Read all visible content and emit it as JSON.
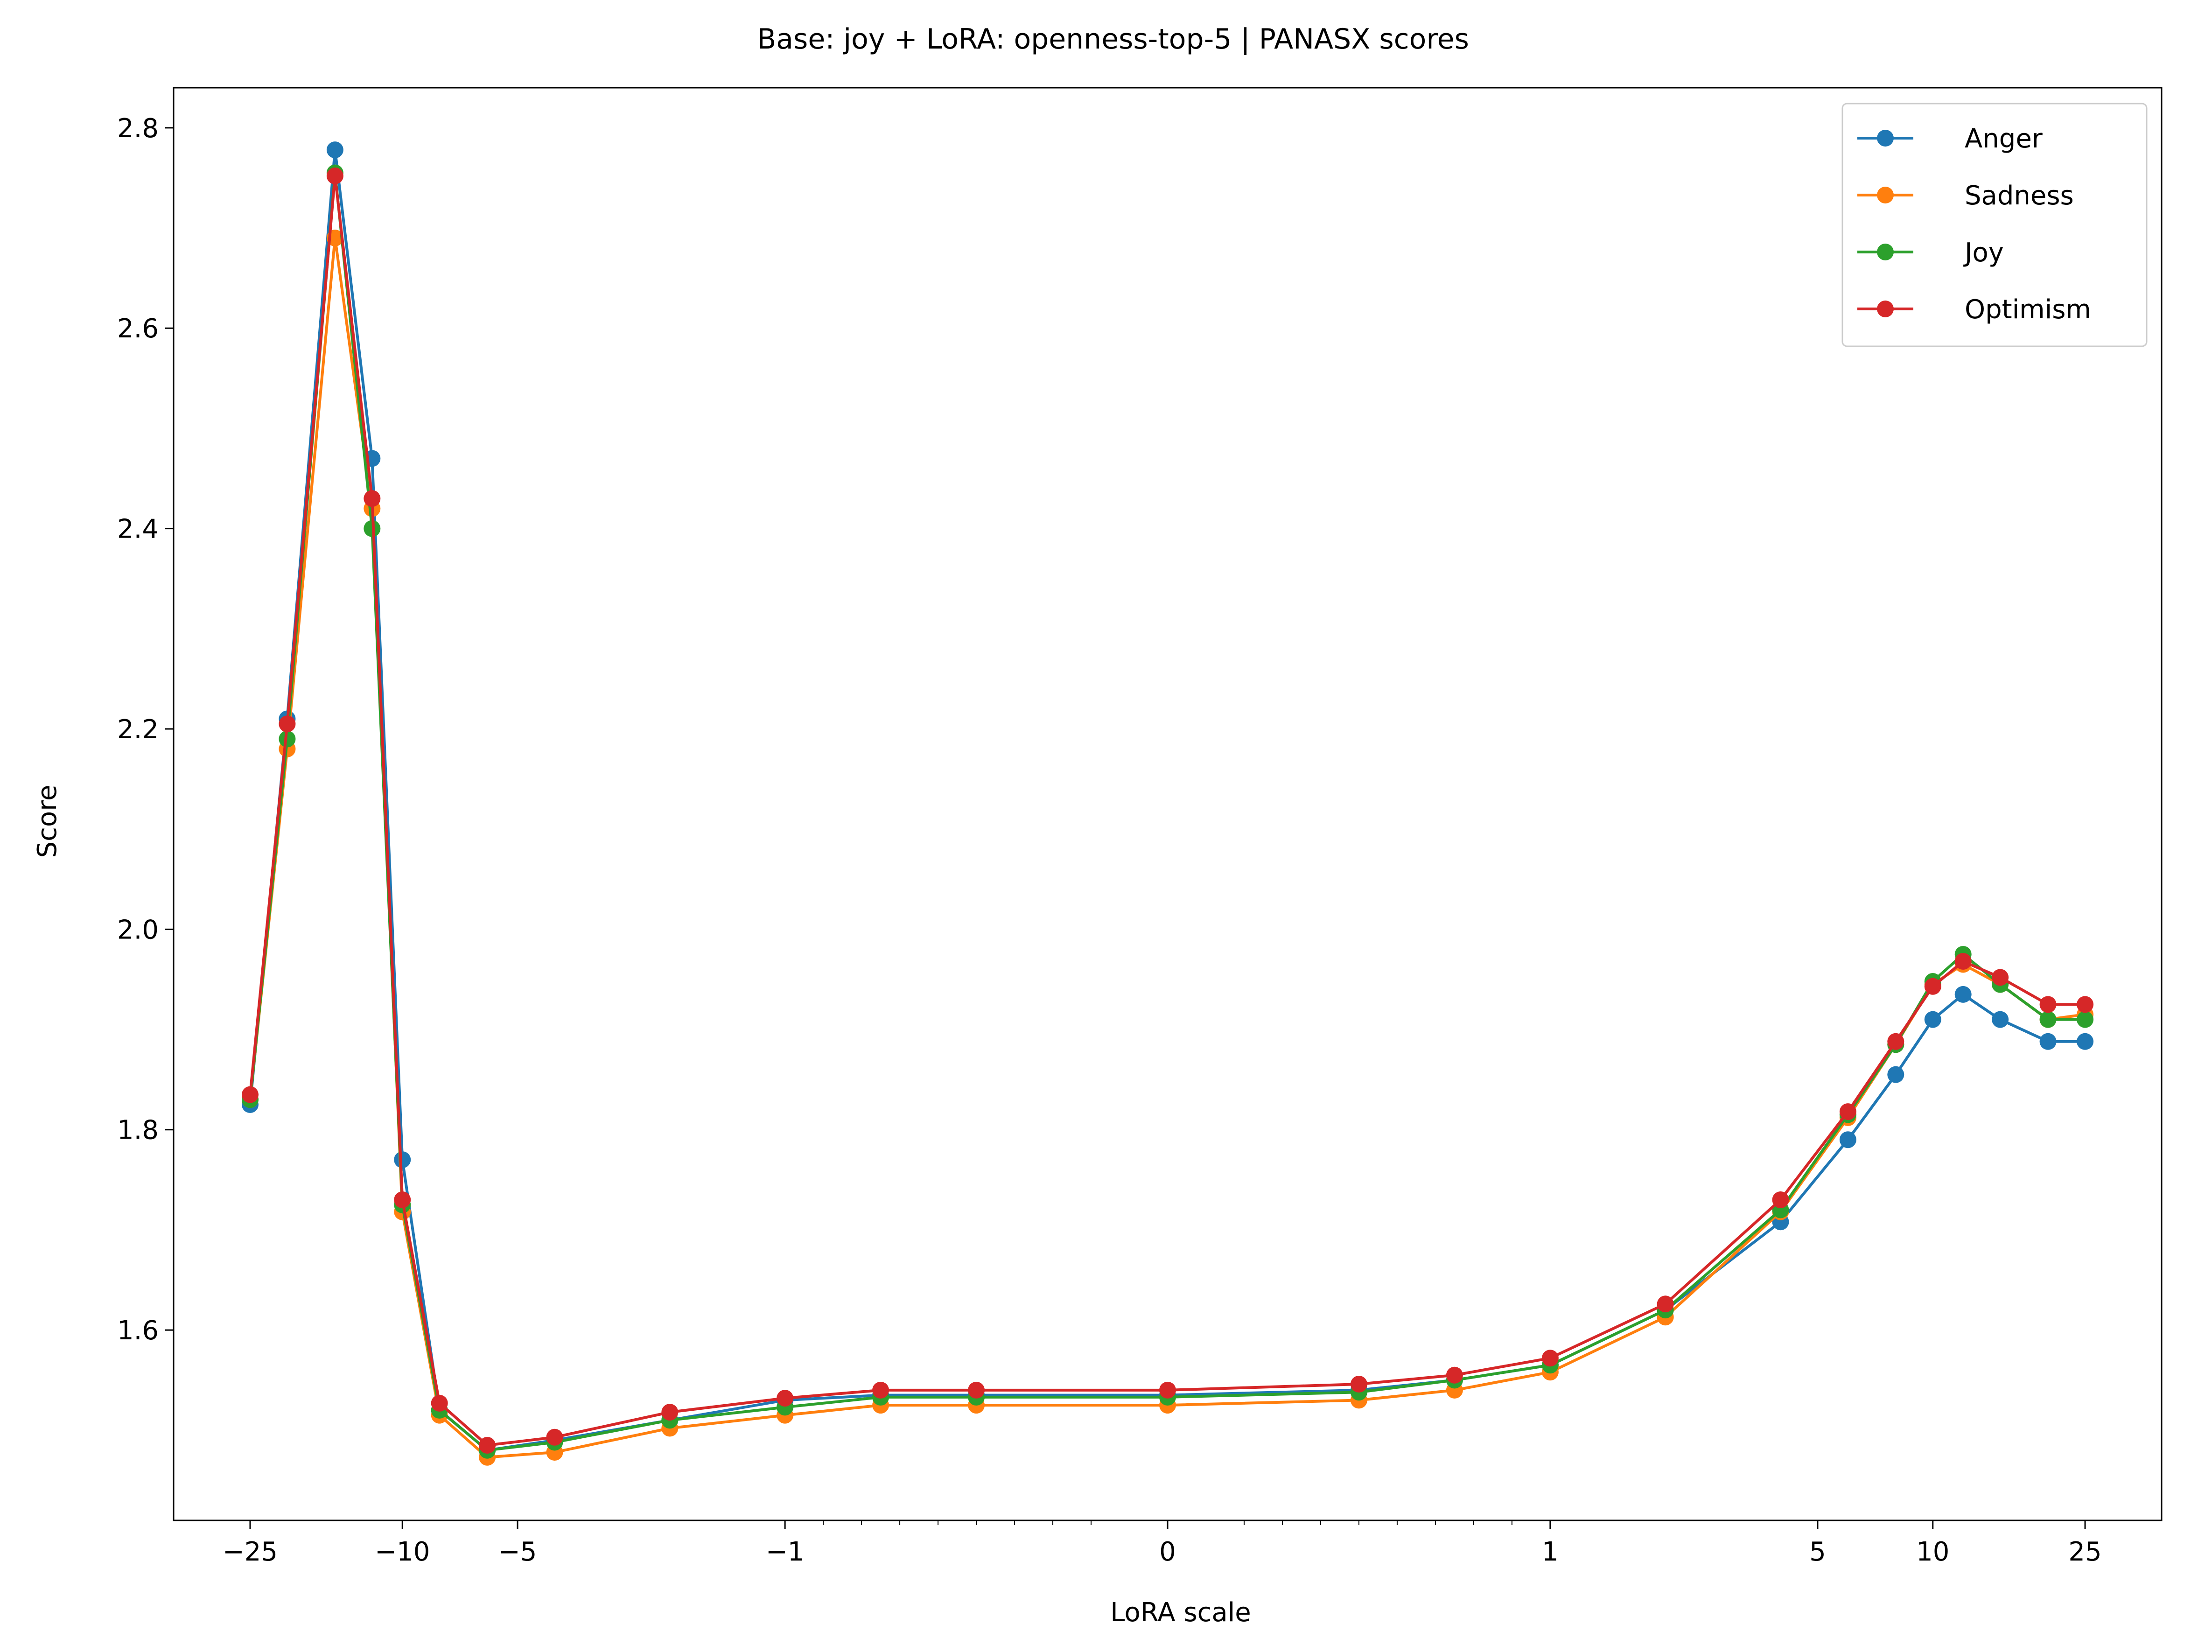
{
  "chart_data": {
    "type": "line",
    "title": "Base: joy + LoRA: openness-top-5 | PANASX scores",
    "xlabel": "LoRA scale",
    "ylabel": "Score",
    "xscale": "symlog",
    "ylim": [
      1.41,
      2.84
    ],
    "grid": false,
    "legend_position": "top-right",
    "x_ticks": [
      {
        "value": -25,
        "label": "−25"
      },
      {
        "value": -10,
        "label": "−10"
      },
      {
        "value": -5,
        "label": "−5"
      },
      {
        "value": -1,
        "label": "−1"
      },
      {
        "value": 0,
        "label": "0"
      },
      {
        "value": 1,
        "label": "1"
      },
      {
        "value": 5,
        "label": "5"
      },
      {
        "value": 10,
        "label": "10"
      },
      {
        "value": 25,
        "label": "25"
      }
    ],
    "y_ticks": [
      {
        "value": 1.6,
        "label": "1.6"
      },
      {
        "value": 1.8,
        "label": "1.8"
      },
      {
        "value": 2.0,
        "label": "2.0"
      },
      {
        "value": 2.2,
        "label": "2.2"
      },
      {
        "value": 2.4,
        "label": "2.4"
      },
      {
        "value": 2.6,
        "label": "2.6"
      },
      {
        "value": 2.8,
        "label": "2.8"
      }
    ],
    "x": [
      -25,
      -20,
      -15,
      -12,
      -10,
      -8,
      -6,
      -4,
      -2,
      -1,
      -0.75,
      -0.5,
      0,
      0.5,
      0.75,
      1,
      2,
      4,
      6,
      8,
      10,
      12,
      15,
      20,
      25
    ],
    "series": [
      {
        "name": "Anger",
        "color": "#1f77b4",
        "values": [
          1.825,
          2.21,
          2.778,
          2.47,
          1.77,
          1.52,
          1.48,
          1.49,
          1.51,
          1.53,
          1.535,
          1.535,
          1.535,
          1.54,
          1.55,
          1.565,
          1.62,
          1.708,
          1.79,
          1.855,
          1.91,
          1.935,
          1.91,
          1.888,
          1.888
        ]
      },
      {
        "name": "Sadness",
        "color": "#ff7f0e",
        "values": [
          1.83,
          2.18,
          2.69,
          2.42,
          1.718,
          1.515,
          1.473,
          1.478,
          1.502,
          1.515,
          1.525,
          1.525,
          1.525,
          1.53,
          1.54,
          1.558,
          1.613,
          1.718,
          1.812,
          1.885,
          1.945,
          1.965,
          1.945,
          1.91,
          1.915
        ]
      },
      {
        "name": "Joy",
        "color": "#2ca02c",
        "values": [
          1.83,
          2.19,
          2.755,
          2.4,
          1.725,
          1.52,
          1.48,
          1.488,
          1.51,
          1.523,
          1.533,
          1.533,
          1.533,
          1.538,
          1.55,
          1.565,
          1.62,
          1.72,
          1.815,
          1.885,
          1.948,
          1.975,
          1.945,
          1.91,
          1.91
        ]
      },
      {
        "name": "Optimism",
        "color": "#d62728",
        "values": [
          1.835,
          2.205,
          2.752,
          2.43,
          1.73,
          1.527,
          1.485,
          1.493,
          1.518,
          1.532,
          1.54,
          1.54,
          1.54,
          1.546,
          1.555,
          1.572,
          1.626,
          1.73,
          1.818,
          1.888,
          1.943,
          1.968,
          1.952,
          1.925,
          1.925
        ]
      }
    ]
  }
}
